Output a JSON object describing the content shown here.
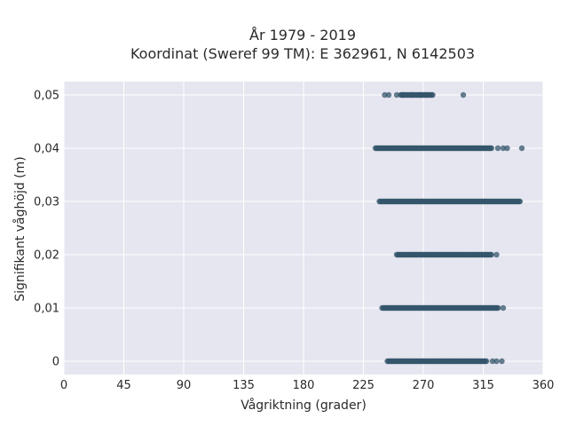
{
  "chart_data": {
    "type": "scatter",
    "title": "År 1979 - 2019",
    "subtitle": "Koordinat (Sweref 99 TM): E 362961, N 6142503",
    "xlabel": "Vågriktning (grader)",
    "ylabel": "Signifikant våghöjd (m)",
    "xlim": [
      0,
      360
    ],
    "ylim": [
      -0.0025,
      0.0525
    ],
    "x_ticks": [
      0,
      45,
      90,
      135,
      180,
      225,
      270,
      315,
      360
    ],
    "x_tick_labels": [
      "0",
      "45",
      "90",
      "135",
      "180",
      "225",
      "270",
      "315",
      "360"
    ],
    "y_ticks": [
      0,
      0.01,
      0.02,
      0.03,
      0.04,
      0.05
    ],
    "y_tick_labels": [
      "0",
      "0,01",
      "0,02",
      "0,03",
      "0,04",
      "0,05"
    ],
    "grid": true,
    "marker_color": "#34566b",
    "background_color": "#e6e6f0",
    "bands": [
      {
        "y": 0.05,
        "dense_range": [
          253,
          277
        ],
        "isolated_x": [
          241,
          244,
          250,
          255,
          262,
          268,
          272,
          300
        ]
      },
      {
        "y": 0.04,
        "dense_range": [
          234,
          322
        ],
        "isolated_x": [
          326,
          330,
          333,
          344
        ]
      },
      {
        "y": 0.03,
        "dense_range": [
          237,
          343
        ],
        "isolated_x": []
      },
      {
        "y": 0.02,
        "dense_range": [
          250,
          322
        ],
        "isolated_x": [
          325
        ]
      },
      {
        "y": 0.01,
        "dense_range": [
          239,
          327
        ],
        "isolated_x": [
          330
        ]
      },
      {
        "y": 0.0,
        "dense_range": [
          243,
          318
        ],
        "isolated_x": [
          322,
          325,
          329
        ]
      }
    ]
  }
}
